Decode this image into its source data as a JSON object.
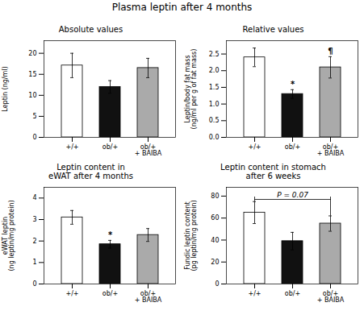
{
  "title": "Plasma leptin after 4 months",
  "chart_data": [
    {
      "type": "bar",
      "title": "Absolute values",
      "categories": [
        "+/+",
        "ob/+",
        "ob/+\n+ BAIBA"
      ],
      "values": [
        17.1,
        12.0,
        16.5
      ],
      "errors": [
        2.9,
        1.5,
        2.3
      ],
      "colors": [
        "white",
        "#111111",
        "#aaaaaa"
      ],
      "ylabel": "Leptin (ng/ml)",
      "ylim": [
        0,
        23
      ],
      "yticks": [
        0,
        5,
        10,
        15,
        20
      ]
    },
    {
      "type": "bar",
      "title": "Relative values",
      "categories": [
        "+/+",
        "ob/+",
        "ob/+\n+ BAIBA"
      ],
      "values": [
        2.4,
        1.3,
        2.1
      ],
      "errors": [
        0.28,
        0.13,
        0.32
      ],
      "colors": [
        "white",
        "#111111",
        "#aaaaaa"
      ],
      "ylabel": "Leptin/body fat mass\n(ng/ml per g of fat mass)",
      "ylim": [
        0,
        2.9
      ],
      "yticks": [
        {
          "value": 0,
          "label": "0.0"
        },
        0.5,
        {
          "value": 1.0,
          "label": "1.0"
        },
        1.5,
        {
          "value": 2.0,
          "label": "2.0"
        },
        2.5
      ],
      "significance": [
        null,
        "*",
        "¶"
      ]
    },
    {
      "type": "bar",
      "title": "Leptin content in\neWAT after 4 months",
      "categories": [
        "+/+",
        "ob/+",
        "ob/+\n+ BAIBA"
      ],
      "values": [
        3.1,
        1.85,
        2.28
      ],
      "errors": [
        0.32,
        0.18,
        0.3
      ],
      "colors": [
        "white",
        "#111111",
        "#aaaaaa"
      ],
      "ylabel": "eWAT leptin\n(ng leptin/mg protein)",
      "ylim": [
        0,
        4.5
      ],
      "yticks": [
        0,
        1,
        2,
        3,
        4
      ],
      "significance": [
        null,
        "*",
        null
      ]
    },
    {
      "type": "bar",
      "title": "Leptin content in stomach\nafter 6 weeks",
      "categories": [
        "+/+",
        "ob/+",
        "ob/+\n+ BAIBA"
      ],
      "values": [
        65.0,
        39.0,
        55.0
      ],
      "errors": [
        10.0,
        8.0,
        7.0
      ],
      "colors": [
        "white",
        "#111111",
        "#aaaaaa"
      ],
      "ylabel": "Fundic leptin content\n(pg leptin/mg protein)",
      "ylim": [
        0,
        88
      ],
      "yticks": [
        0,
        20,
        40,
        60,
        80
      ],
      "bracket": {
        "categories": [
          "+/+",
          "ob/+\n+ BAIBA"
        ],
        "y": 77,
        "label": "P = 0.07"
      }
    }
  ]
}
